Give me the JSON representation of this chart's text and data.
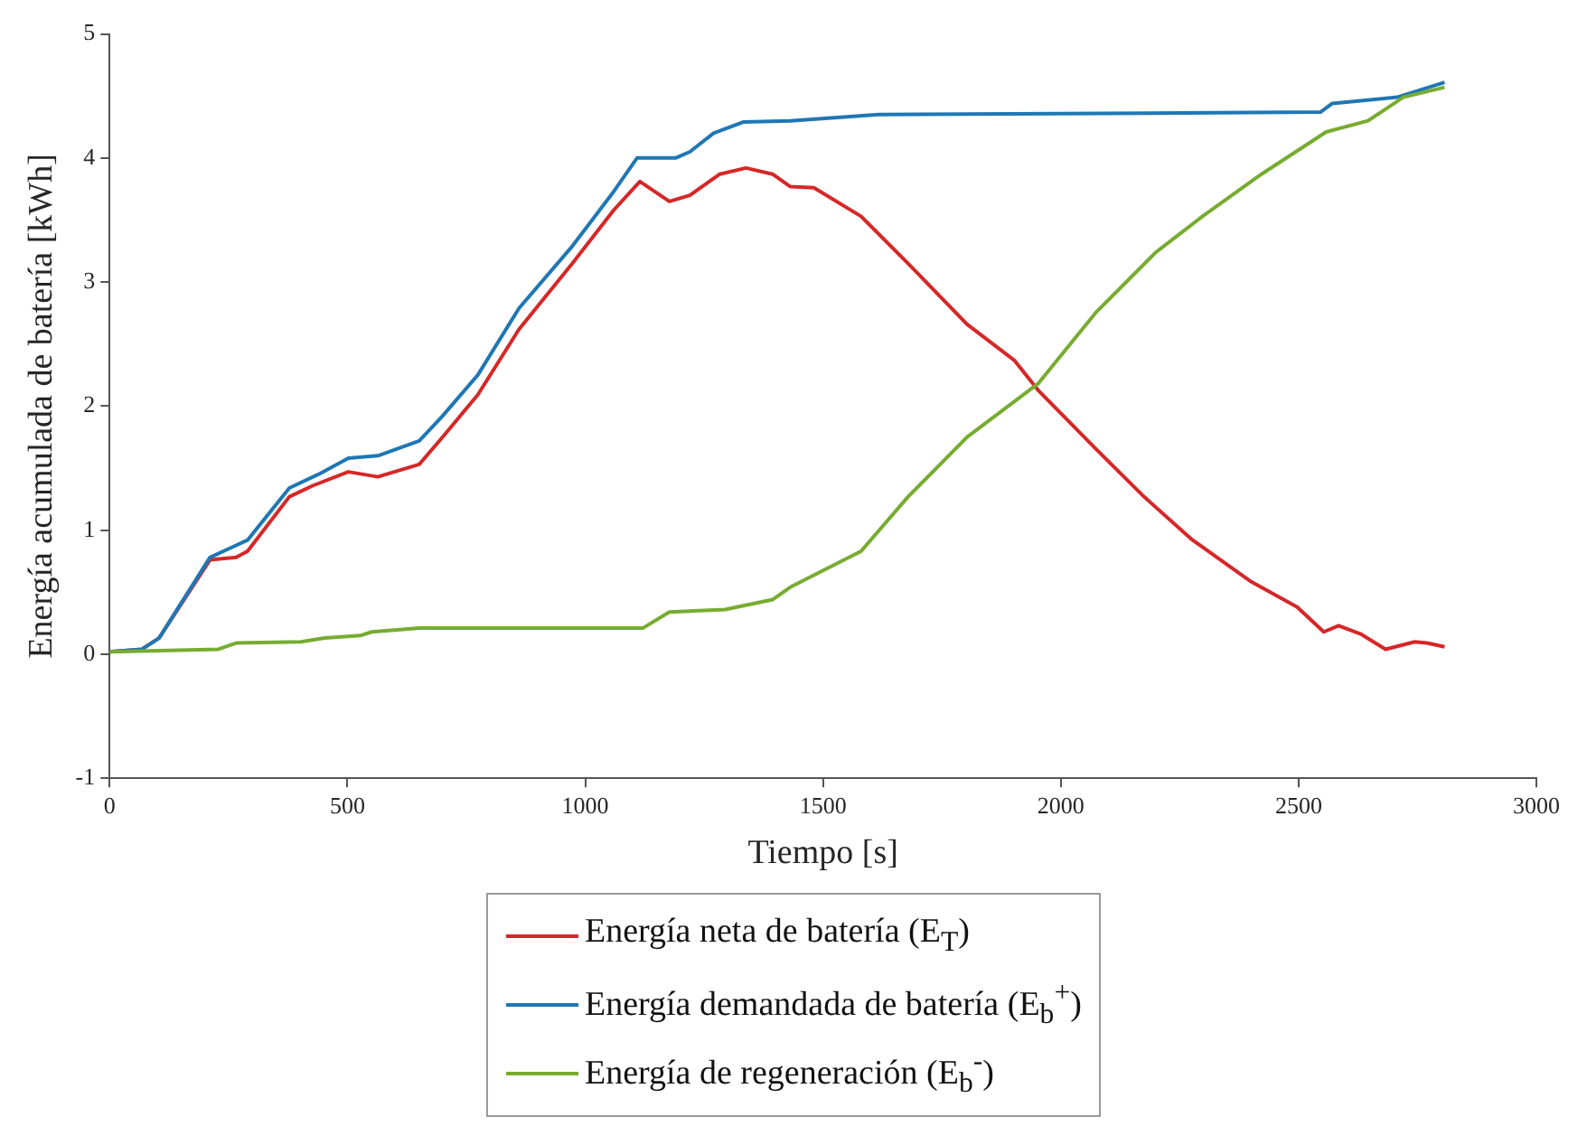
{
  "chart_data": {
    "type": "line",
    "xlabel": "Tiempo [s]",
    "ylabel": "Energía acumulada de batería [kWh]",
    "xlim": [
      0,
      3000
    ],
    "xticks": [
      0,
      500,
      1000,
      1500,
      2000,
      2500,
      3000
    ],
    "ylim": [
      -1,
      5
    ],
    "yticks": [
      -1,
      0,
      1,
      2,
      3,
      4,
      5
    ],
    "grid": false,
    "legend": "bottom",
    "marker": "none",
    "line_style": "solid",
    "series": [
      {
        "name": "Energía neta de batería (E$_{T}$)",
        "color": "#d62728",
        "x": [
          0,
          68,
          104,
          211,
          266,
          290,
          378,
          428,
          502,
          564,
          651,
          700,
          774,
          861,
          973,
          1060,
          1115,
          1177,
          1220,
          1283,
          1338,
          1394,
          1431,
          1481,
          1580,
          1679,
          1803,
          1902,
          1952,
          2075,
          2175,
          2274,
          2398,
          2497,
          2553,
          2584,
          2632,
          2683,
          2744,
          2770,
          2807
        ],
        "values": [
          0.02,
          0.04,
          0.13,
          0.76,
          0.78,
          0.83,
          1.27,
          1.36,
          1.47,
          1.43,
          1.53,
          1.75,
          2.09,
          2.62,
          3.15,
          3.58,
          3.81,
          3.65,
          3.7,
          3.87,
          3.92,
          3.87,
          3.77,
          3.76,
          3.53,
          3.15,
          2.66,
          2.37,
          2.13,
          1.65,
          1.27,
          0.93,
          0.59,
          0.38,
          0.18,
          0.23,
          0.16,
          0.04,
          0.1,
          0.09,
          0.06
        ]
      },
      {
        "name": "Energía demandada de batería (E$_{b}$$^{+}$)",
        "color": "#1f77b4",
        "x": [
          0,
          68,
          104,
          211,
          290,
          378,
          439,
          502,
          564,
          651,
          700,
          774,
          861,
          973,
          1060,
          1109,
          1190,
          1220,
          1270,
          1332,
          1431,
          1617,
          2546,
          2571,
          2707,
          2807
        ],
        "values": [
          0.02,
          0.04,
          0.13,
          0.78,
          0.92,
          1.34,
          1.45,
          1.58,
          1.6,
          1.72,
          1.92,
          2.25,
          2.79,
          3.29,
          3.73,
          4.0,
          4.0,
          4.05,
          4.2,
          4.29,
          4.3,
          4.35,
          4.37,
          4.44,
          4.49,
          4.61
        ]
      },
      {
        "name": "Energía de regeneración (E$_{b}$$^{-}$)",
        "color": "#77ac30",
        "x": [
          0,
          229,
          266,
          402,
          452,
          527,
          551,
          651,
          1121,
          1177,
          1294,
          1394,
          1431,
          1580,
          1679,
          1803,
          1952,
          2075,
          2200,
          2298,
          2422,
          2558,
          2646,
          2720,
          2807
        ],
        "values": [
          0.02,
          0.04,
          0.09,
          0.1,
          0.13,
          0.15,
          0.18,
          0.21,
          0.21,
          0.34,
          0.36,
          0.44,
          0.54,
          0.83,
          1.27,
          1.75,
          2.18,
          2.76,
          3.24,
          3.53,
          3.87,
          4.21,
          4.3,
          4.49,
          4.57
        ]
      }
    ]
  }
}
